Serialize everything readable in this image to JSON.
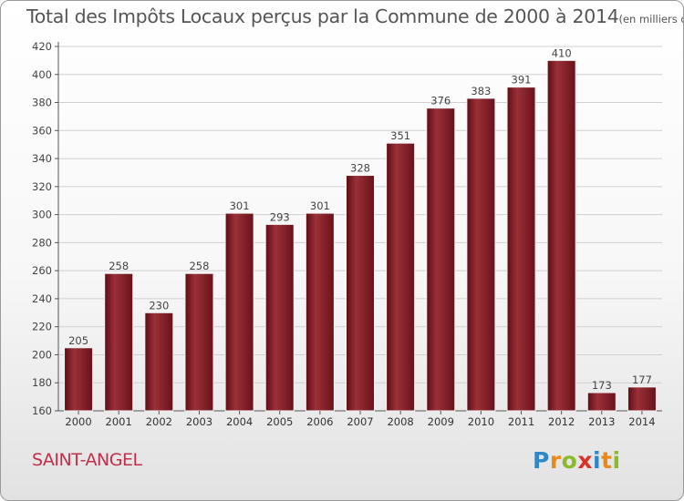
{
  "chart_data": {
    "type": "bar",
    "title": "Total des Impôts Locaux perçus par la Commune de 2000 à 2014",
    "title_unit": "(en milliers d'€)",
    "categories": [
      "2000",
      "2001",
      "2002",
      "2003",
      "2004",
      "2005",
      "2006",
      "2007",
      "2008",
      "2009",
      "2010",
      "2011",
      "2012",
      "2013",
      "2014"
    ],
    "values": [
      205,
      258,
      230,
      258,
      301,
      293,
      301,
      328,
      351,
      376,
      383,
      391,
      410,
      173,
      177
    ],
    "ylim": [
      160,
      420
    ],
    "yticks": [
      160,
      180,
      200,
      220,
      240,
      260,
      280,
      300,
      320,
      340,
      360,
      380,
      400,
      420
    ],
    "grid": true,
    "xlabel": "",
    "ylabel": "",
    "bar_color": "#7a1a22"
  },
  "commune": "SAINT-ANGEL",
  "logo": {
    "letters": [
      "P",
      "r",
      "o",
      "x",
      "i",
      "t",
      "i"
    ],
    "colors": [
      "#2e87c8",
      "#e8891a",
      "#8bbb2a",
      "#d8322a",
      "#2e87c8",
      "#e8891a",
      "#8bbb2a"
    ]
  }
}
